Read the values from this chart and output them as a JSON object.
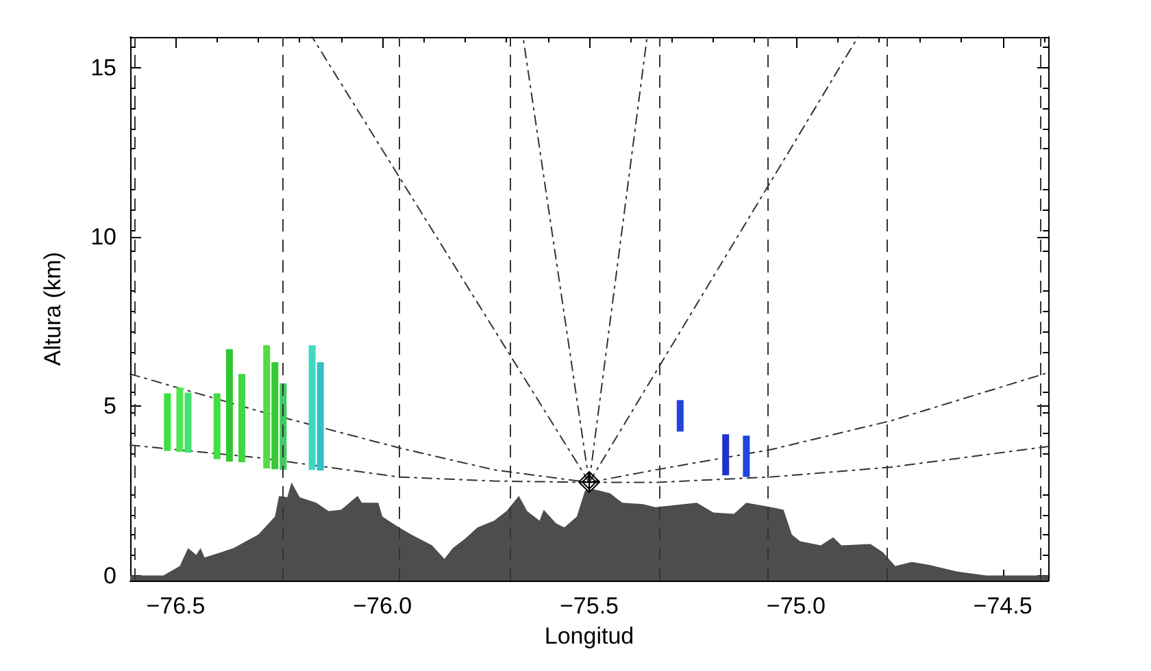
{
  "chart_data": {
    "type": "line",
    "xlabel": "Longitud",
    "ylabel": "Altura (km)",
    "xlim": [
      -76.61,
      -74.39
    ],
    "ylim": [
      -0.15,
      15.9
    ],
    "xticks": [
      {
        "value": -76.5,
        "label": "−76.5"
      },
      {
        "value": -76,
        "label": "−76.0"
      },
      {
        "value": -75.5,
        "label": "−75.5"
      },
      {
        "value": -75,
        "label": "−75.0"
      },
      {
        "value": -74.5,
        "label": "−74.5"
      }
    ],
    "yticks": [
      0,
      5,
      10,
      15
    ],
    "grid": false,
    "series": [
      {
        "type": "area",
        "color": "#4d4d4d",
        "x": [
          -76.61,
          -76.56,
          -76.53,
          -76.49,
          -76.47,
          -76.45,
          -76.44,
          -76.43,
          -76.39,
          -76.36,
          -76.33,
          -76.3,
          -76.26,
          -76.25,
          -76.23,
          -76.22,
          -76.2,
          -76.16,
          -76.13,
          -76.1,
          -76.06,
          -76.05,
          -76.01,
          -76.0,
          -75.96,
          -75.93,
          -75.88,
          -75.85,
          -75.83,
          -75.8,
          -75.77,
          -75.73,
          -75.7,
          -75.67,
          -75.65,
          -75.62,
          -75.61,
          -75.58,
          -75.56,
          -75.53,
          -75.51,
          -75.49,
          -75.45,
          -75.42,
          -75.37,
          -75.34,
          -75.24,
          -75.2,
          -75.15,
          -75.12,
          -75.06,
          -75.03,
          -75.01,
          -74.99,
          -74.94,
          -74.91,
          -74.89,
          -74.82,
          -74.79,
          -74.76,
          -74.72,
          -74.68,
          -74.61,
          -74.54,
          -74.39
        ],
        "values": [
          0,
          0,
          0,
          0.28,
          0.81,
          0.61,
          0.81,
          0.53,
          0.69,
          0.81,
          1.01,
          1.21,
          1.74,
          2.35,
          2.31,
          2.75,
          2.31,
          2.15,
          1.9,
          1.94,
          2.35,
          2.15,
          2.15,
          1.74,
          1.42,
          1.21,
          0.89,
          0.49,
          0.81,
          1.09,
          1.42,
          1.62,
          1.9,
          2.35,
          1.9,
          1.62,
          1.94,
          1.54,
          1.42,
          1.74,
          2.51,
          2.55,
          2.43,
          2.15,
          2.11,
          2.02,
          2.15,
          1.86,
          1.82,
          2.15,
          2.02,
          1.94,
          1.21,
          1.01,
          0.89,
          1.13,
          0.89,
          0.93,
          0.69,
          0.28,
          0.4,
          0.32,
          0.12,
          0,
          0
        ]
      },
      {
        "color": "#333333",
        "line_style": "dashdot",
        "x": [
          -76.61,
          -76.3,
          -75.96,
          -75.73,
          -75.5
        ],
        "values": [
          5.95,
          4.86,
          3.77,
          3.12,
          2.75
        ]
      },
      {
        "type": "line",
        "color": "#333333",
        "line_style": "dashdot",
        "x": [
          -76.61,
          -76.3,
          -75.96,
          -75.73,
          -75.5
        ],
        "values": [
          3.85,
          3.48,
          2.91,
          2.79,
          2.75
        ]
      },
      {
        "type": "line",
        "color": "#333333",
        "line_style": "dashdot",
        "x": [
          -75.5,
          -75.34,
          -75.06,
          -74.77,
          -74.39
        ],
        "values": [
          2.75,
          3.12,
          3.72,
          4.57,
          5.99
        ]
      },
      {
        "type": "line",
        "color": "#333333",
        "line_style": "dashdot",
        "x": [
          -75.5,
          -75.34,
          -75.06,
          -74.77,
          -74.39
        ],
        "values": [
          2.75,
          2.75,
          2.91,
          3.2,
          3.81
        ]
      },
      {
        "type": "line",
        "color": "#333333",
        "line_style": "dashdot",
        "x": [
          -75.5,
          -75.66
        ],
        "values": [
          2.75,
          15.9
        ]
      },
      {
        "type": "line",
        "color": "#333333",
        "line_style": "dashdot",
        "x": [
          -75.5,
          -75.36
        ],
        "values": [
          2.75,
          15.9
        ]
      },
      {
        "type": "line",
        "color": "#333333",
        "line_style": "dashdot",
        "x": [
          -75.5,
          -76.17
        ],
        "values": [
          2.75,
          15.9
        ]
      },
      {
        "type": "line",
        "color": "#333333",
        "line_style": "dashdot",
        "x": [
          -75.5,
          -74.85
        ],
        "values": [
          2.75,
          15.9
        ]
      },
      {
        "type": "bar",
        "x": [
          -76.52,
          -76.49,
          -76.47,
          -76.4,
          -76.37,
          -76.34,
          -76.28,
          -76.26,
          -76.24,
          -76.17,
          -76.15,
          -75.28,
          -75.17,
          -75.12
        ],
        "base": [
          3.68,
          3.65,
          3.63,
          3.44,
          3.36,
          3.34,
          3.16,
          3.14,
          3.12,
          3.12,
          3.1,
          4.25,
          2.96,
          2.91
        ],
        "values": [
          1.7,
          1.9,
          1.77,
          1.94,
          3.32,
          2.61,
          3.64,
          3.16,
          2.55,
          3.68,
          3.2,
          0.93,
          1.21,
          1.22
        ],
        "colors": [
          "#40e040",
          "#50e850",
          "#44e070",
          "#40e040",
          "#30c830",
          "#40d840",
          "#50dd40",
          "#38c838",
          "#40cc60",
          "#40d8c0",
          "#30c0c8",
          "#2244dd",
          "#2233cc",
          "#2244dd"
        ]
      }
    ],
    "ref_lines": [
      {
        "axis": "x",
        "value": -76.6,
        "line_style": "dashed",
        "color": "#333333"
      },
      {
        "axis": "x",
        "value": -76.24,
        "line_style": "dashed",
        "color": "#333333"
      },
      {
        "axis": "x",
        "value": -75.96,
        "line_style": "dashed",
        "color": "#333333"
      },
      {
        "axis": "x",
        "value": -75.69,
        "line_style": "dashed",
        "color": "#333333"
      },
      {
        "axis": "x",
        "value": -75.33,
        "line_style": "dashed",
        "color": "#333333"
      },
      {
        "axis": "x",
        "value": -75.07,
        "line_style": "dashed",
        "color": "#333333"
      },
      {
        "axis": "x",
        "value": -74.78,
        "line_style": "dashed",
        "color": "#333333"
      },
      {
        "axis": "x",
        "value": -74.41,
        "line_style": "dashed",
        "color": "#333333"
      }
    ]
  }
}
